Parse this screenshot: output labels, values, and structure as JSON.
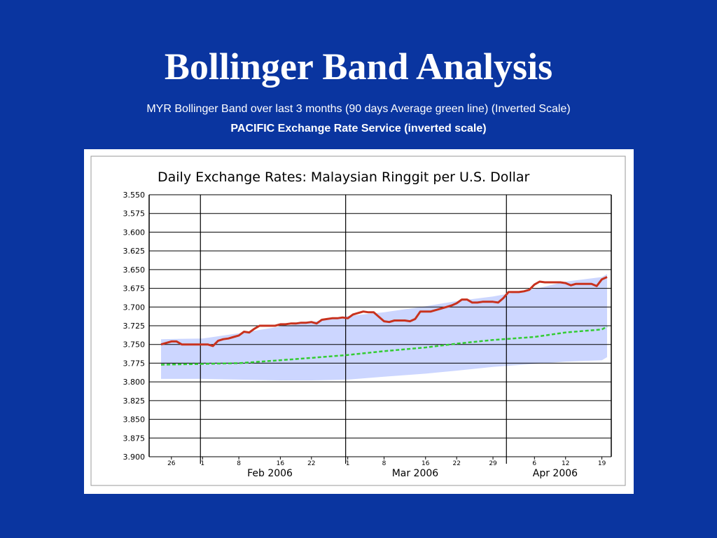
{
  "slide": {
    "title": "Bollinger Band Analysis",
    "subtitle": "MYR Bollinger Band over last 3 months (90 days Average green line)  (Inverted Scale)",
    "source": "PACIFIC Exchange Rate Service (inverted scale)"
  },
  "colors": {
    "background": "#0a35a0",
    "rate_line": "#c8321e",
    "average_line": "#33cc33",
    "band_fill": "#ccd6ff"
  },
  "chart_data": {
    "type": "line",
    "title": "Daily Exchange Rates: Malaysian Ringgit per U.S. Dollar",
    "y_inverted": true,
    "ylim": [
      3.55,
      3.9
    ],
    "yticks": [
      "3.550",
      "3.575",
      "3.600",
      "3.625",
      "3.650",
      "3.675",
      "3.700",
      "3.725",
      "3.750",
      "3.775",
      "3.800",
      "3.825",
      "3.850",
      "3.875",
      "3.900"
    ],
    "xlim": [
      "2006-01-24",
      "2006-04-20"
    ],
    "xticks": [
      {
        "date": "2006-01-26",
        "label": "26"
      },
      {
        "date": "2006-02-01",
        "label": "1"
      },
      {
        "date": "2006-02-08",
        "label": "8"
      },
      {
        "date": "2006-02-16",
        "label": "16"
      },
      {
        "date": "2006-02-22",
        "label": "22"
      },
      {
        "date": "2006-03-01",
        "label": "1"
      },
      {
        "date": "2006-03-08",
        "label": "8"
      },
      {
        "date": "2006-03-16",
        "label": "16"
      },
      {
        "date": "2006-03-22",
        "label": "22"
      },
      {
        "date": "2006-03-29",
        "label": "29"
      },
      {
        "date": "2006-04-06",
        "label": "6"
      },
      {
        "date": "2006-04-12",
        "label": "12"
      },
      {
        "date": "2006-04-19",
        "label": "19"
      }
    ],
    "month_labels": [
      {
        "date": "2006-02-14",
        "label": "Feb 2006"
      },
      {
        "date": "2006-03-14",
        "label": "Mar 2006"
      },
      {
        "date": "2006-04-10",
        "label": "Apr 2006"
      }
    ],
    "month_dividers": [
      "2006-02-01",
      "2006-03-01",
      "2006-04-01"
    ],
    "grid": true,
    "series": [
      {
        "key": "rate",
        "points": [
          [
            "2006-01-24",
            3.75
          ],
          [
            "2006-01-25",
            3.748
          ],
          [
            "2006-01-26",
            3.746
          ],
          [
            "2006-01-27",
            3.746
          ],
          [
            "2006-01-28",
            3.75
          ],
          [
            "2006-01-29",
            3.75
          ],
          [
            "2006-01-30",
            3.75
          ],
          [
            "2006-01-31",
            3.75
          ],
          [
            "2006-02-01",
            3.75
          ],
          [
            "2006-02-02",
            3.75
          ],
          [
            "2006-02-03",
            3.752
          ],
          [
            "2006-02-04",
            3.745
          ],
          [
            "2006-02-05",
            3.743
          ],
          [
            "2006-02-06",
            3.742
          ],
          [
            "2006-02-07",
            3.74
          ],
          [
            "2006-02-08",
            3.738
          ],
          [
            "2006-02-09",
            3.733
          ],
          [
            "2006-02-10",
            3.734
          ],
          [
            "2006-02-11",
            3.729
          ],
          [
            "2006-02-12",
            3.725
          ],
          [
            "2006-02-13",
            3.725
          ],
          [
            "2006-02-14",
            3.725
          ],
          [
            "2006-02-15",
            3.725
          ],
          [
            "2006-02-16",
            3.723
          ],
          [
            "2006-02-17",
            3.723
          ],
          [
            "2006-02-18",
            3.722
          ],
          [
            "2006-02-19",
            3.722
          ],
          [
            "2006-02-20",
            3.721
          ],
          [
            "2006-02-21",
            3.721
          ],
          [
            "2006-02-22",
            3.72
          ],
          [
            "2006-02-23",
            3.722
          ],
          [
            "2006-02-24",
            3.717
          ],
          [
            "2006-02-25",
            3.716
          ],
          [
            "2006-02-26",
            3.715
          ],
          [
            "2006-02-27",
            3.715
          ],
          [
            "2006-02-28",
            3.714
          ],
          [
            "2006-03-01",
            3.715
          ],
          [
            "2006-03-02",
            3.71
          ],
          [
            "2006-03-03",
            3.708
          ],
          [
            "2006-03-04",
            3.706
          ],
          [
            "2006-03-05",
            3.707
          ],
          [
            "2006-03-06",
            3.707
          ],
          [
            "2006-03-07",
            3.713
          ],
          [
            "2006-03-08",
            3.719
          ],
          [
            "2006-03-09",
            3.72
          ],
          [
            "2006-03-10",
            3.718
          ],
          [
            "2006-03-11",
            3.718
          ],
          [
            "2006-03-12",
            3.718
          ],
          [
            "2006-03-13",
            3.719
          ],
          [
            "2006-03-14",
            3.716
          ],
          [
            "2006-03-15",
            3.706
          ],
          [
            "2006-03-16",
            3.706
          ],
          [
            "2006-03-17",
            3.706
          ],
          [
            "2006-03-18",
            3.704
          ],
          [
            "2006-03-19",
            3.702
          ],
          [
            "2006-03-20",
            3.7
          ],
          [
            "2006-03-21",
            3.698
          ],
          [
            "2006-03-22",
            3.695
          ],
          [
            "2006-03-23",
            3.69
          ],
          [
            "2006-03-24",
            3.69
          ],
          [
            "2006-03-25",
            3.694
          ],
          [
            "2006-03-26",
            3.694
          ],
          [
            "2006-03-27",
            3.693
          ],
          [
            "2006-03-28",
            3.693
          ],
          [
            "2006-03-29",
            3.693
          ],
          [
            "2006-03-30",
            3.694
          ],
          [
            "2006-03-31",
            3.688
          ],
          [
            "2006-04-01",
            3.68
          ],
          [
            "2006-04-02",
            3.68
          ],
          [
            "2006-04-03",
            3.68
          ],
          [
            "2006-04-04",
            3.679
          ],
          [
            "2006-04-05",
            3.677
          ],
          [
            "2006-04-06",
            3.67
          ],
          [
            "2006-04-07",
            3.666
          ],
          [
            "2006-04-08",
            3.667
          ],
          [
            "2006-04-09",
            3.667
          ],
          [
            "2006-04-10",
            3.667
          ],
          [
            "2006-04-11",
            3.667
          ],
          [
            "2006-04-12",
            3.668
          ],
          [
            "2006-04-13",
            3.671
          ],
          [
            "2006-04-14",
            3.669
          ],
          [
            "2006-04-15",
            3.669
          ],
          [
            "2006-04-16",
            3.669
          ],
          [
            "2006-04-17",
            3.669
          ],
          [
            "2006-04-18",
            3.672
          ],
          [
            "2006-04-19",
            3.663
          ],
          [
            "2006-04-20",
            3.66
          ]
        ]
      },
      {
        "key": "average",
        "points": [
          [
            "2006-01-24",
            3.777
          ],
          [
            "2006-02-01",
            3.776
          ],
          [
            "2006-02-08",
            3.775
          ],
          [
            "2006-02-16",
            3.771
          ],
          [
            "2006-02-22",
            3.768
          ],
          [
            "2006-03-01",
            3.764
          ],
          [
            "2006-03-08",
            3.759
          ],
          [
            "2006-03-16",
            3.754
          ],
          [
            "2006-03-22",
            3.749
          ],
          [
            "2006-03-29",
            3.744
          ],
          [
            "2006-04-06",
            3.74
          ],
          [
            "2006-04-12",
            3.734
          ],
          [
            "2006-04-19",
            3.73
          ],
          [
            "2006-04-20",
            3.726
          ]
        ]
      }
    ],
    "band": {
      "upper": [
        [
          "2006-01-24",
          3.743
        ],
        [
          "2006-02-01",
          3.742
        ],
        [
          "2006-02-08",
          3.735
        ],
        [
          "2006-02-16",
          3.726
        ],
        [
          "2006-02-22",
          3.72
        ],
        [
          "2006-03-01",
          3.712
        ],
        [
          "2006-03-08",
          3.707
        ],
        [
          "2006-03-16",
          3.699
        ],
        [
          "2006-03-22",
          3.692
        ],
        [
          "2006-03-29",
          3.686
        ],
        [
          "2006-04-06",
          3.676
        ],
        [
          "2006-04-12",
          3.666
        ],
        [
          "2006-04-19",
          3.66
        ],
        [
          "2006-04-20",
          3.656
        ]
      ],
      "lower": [
        [
          "2006-01-24",
          3.796
        ],
        [
          "2006-02-01",
          3.796
        ],
        [
          "2006-02-08",
          3.797
        ],
        [
          "2006-02-16",
          3.798
        ],
        [
          "2006-02-22",
          3.798
        ],
        [
          "2006-03-01",
          3.797
        ],
        [
          "2006-03-08",
          3.793
        ],
        [
          "2006-03-16",
          3.789
        ],
        [
          "2006-03-22",
          3.785
        ],
        [
          "2006-03-29",
          3.78
        ],
        [
          "2006-04-06",
          3.776
        ],
        [
          "2006-04-12",
          3.773
        ],
        [
          "2006-04-19",
          3.771
        ],
        [
          "2006-04-20",
          3.767
        ]
      ]
    }
  }
}
